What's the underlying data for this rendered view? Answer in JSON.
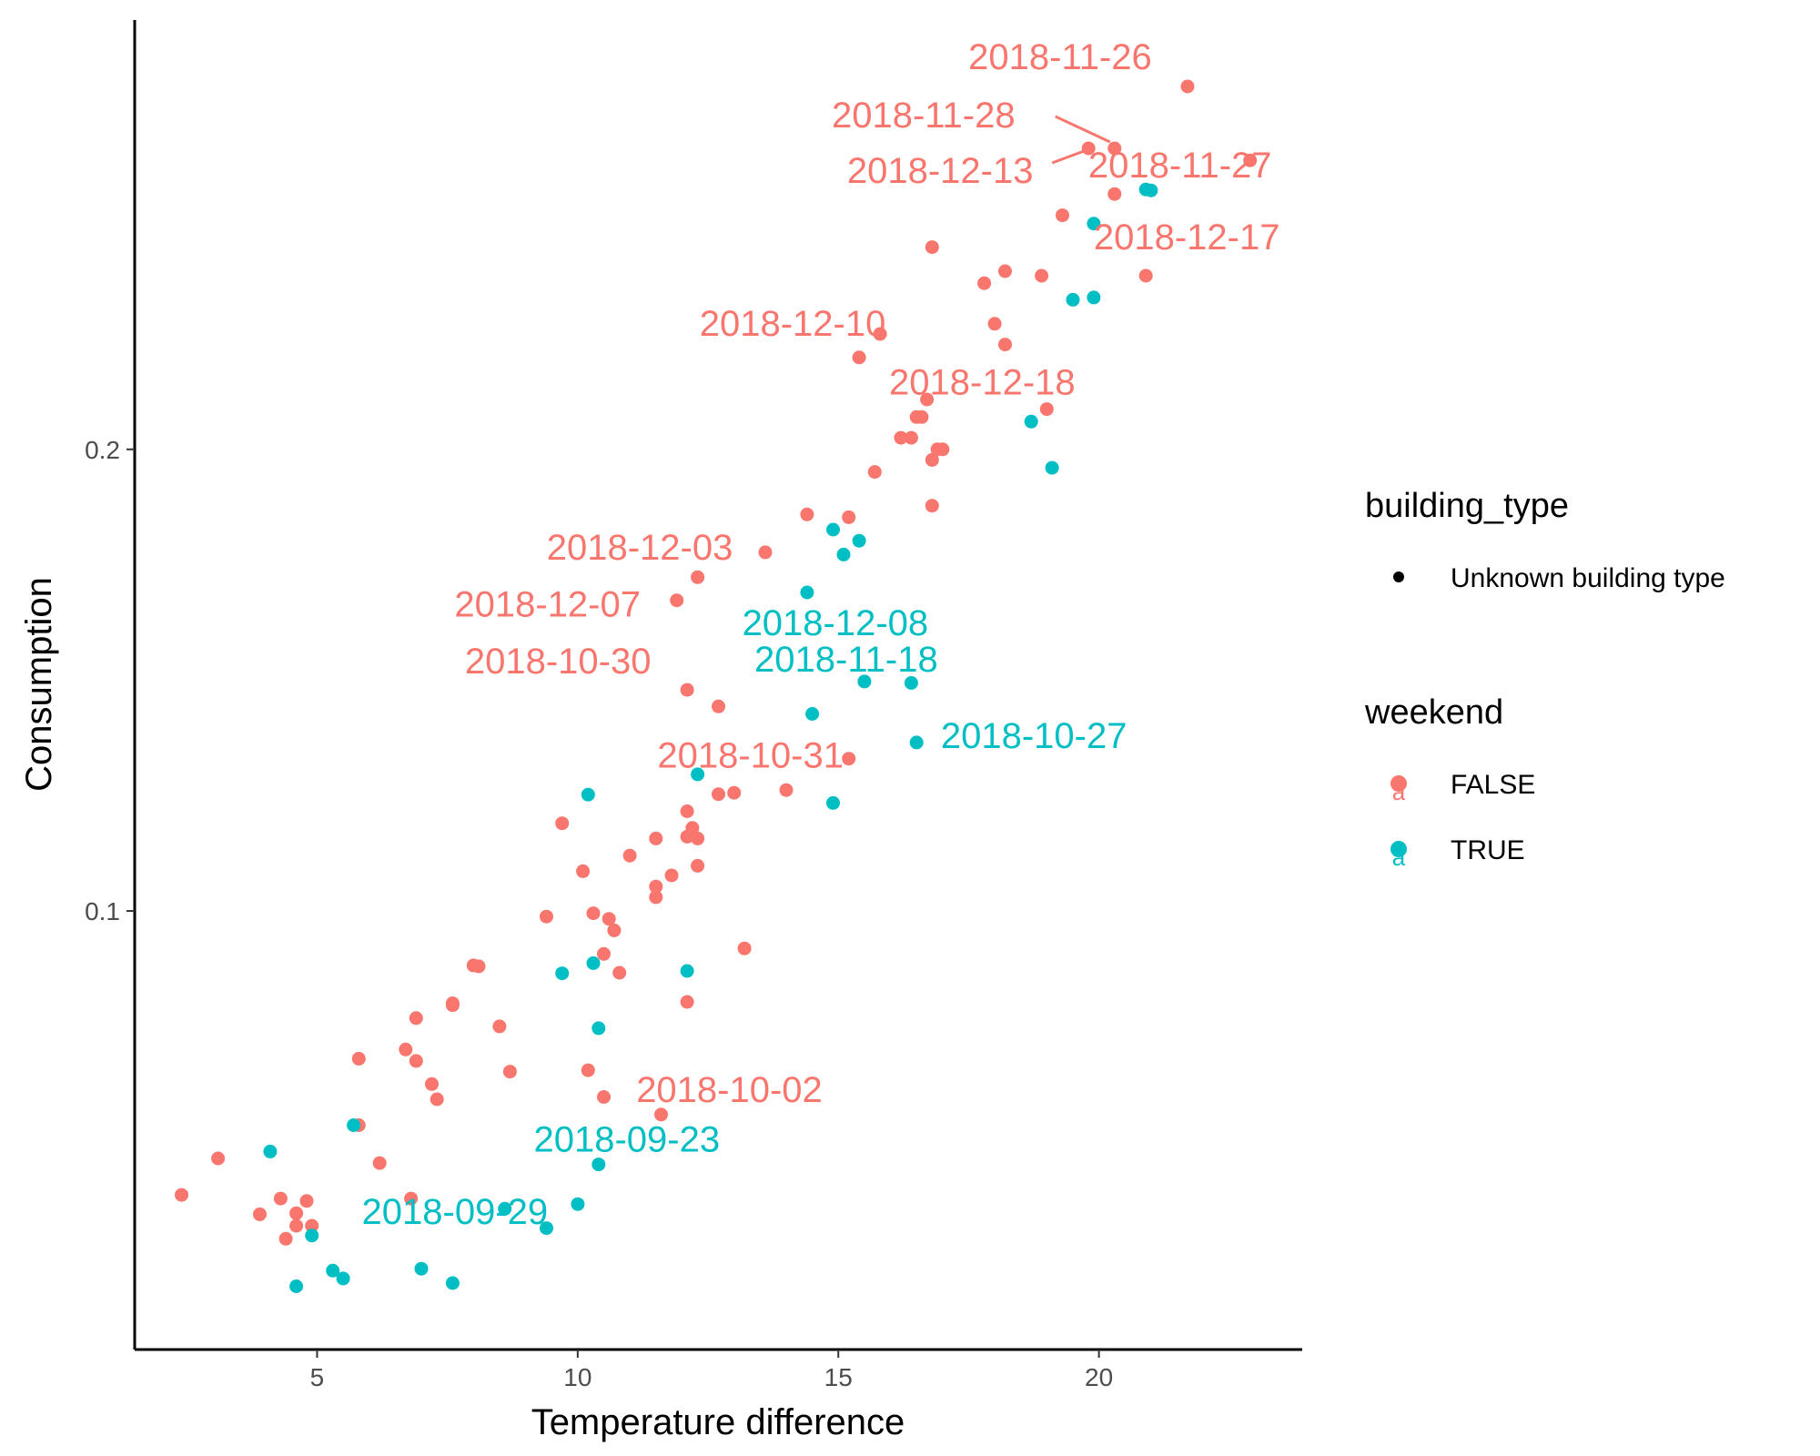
{
  "chart_data": {
    "type": "scatter",
    "title": "",
    "xlabel": "Temperature difference",
    "ylabel": "Consumption",
    "xlim": [
      1.5,
      23.9
    ],
    "ylim": [
      0.005,
      0.293
    ],
    "xticks": [
      5,
      10,
      15,
      20
    ],
    "yticks": [
      0.1,
      0.2
    ],
    "x_tick_labels": [
      "5",
      "10",
      "15",
      "20"
    ],
    "y_tick_labels": [
      "0.1",
      "0.2"
    ],
    "grid": false,
    "legend_position": "right",
    "legend": {
      "building_type": {
        "title": "building_type",
        "entries": [
          "Unknown building type"
        ]
      },
      "weekend": {
        "title": "weekend",
        "entries": [
          {
            "label": "FALSE",
            "color": "#F8766D",
            "glyph": "a"
          },
          {
            "label": "TRUE",
            "color": "#00BFC4",
            "glyph": "a"
          }
        ]
      }
    },
    "colors": {
      "FALSE": "#F8766D",
      "TRUE": "#00BFC4"
    },
    "series": [
      {
        "name": "FALSE",
        "color": "#F8766D",
        "points": [
          [
            21.7,
            0.2786
          ],
          [
            20.3,
            0.2652
          ],
          [
            19.8,
            0.2652
          ],
          [
            22.9,
            0.2626
          ],
          [
            20.3,
            0.2553
          ],
          [
            19.3,
            0.2507
          ],
          [
            16.8,
            0.2438
          ],
          [
            20.9,
            0.2376
          ],
          [
            18.9,
            0.2376
          ],
          [
            18.2,
            0.2386
          ],
          [
            17.8,
            0.236
          ],
          [
            18.0,
            0.2272
          ],
          [
            18.2,
            0.2227
          ],
          [
            15.8,
            0.225
          ],
          [
            15.4,
            0.2199
          ],
          [
            19.0,
            0.2087
          ],
          [
            16.7,
            0.2108
          ],
          [
            16.5,
            0.207
          ],
          [
            16.6,
            0.207
          ],
          [
            16.4,
            0.2025
          ],
          [
            16.2,
            0.2025
          ],
          [
            17.0,
            0.2
          ],
          [
            16.9,
            0.2
          ],
          [
            16.8,
            0.1977
          ],
          [
            15.7,
            0.1951
          ],
          [
            16.8,
            0.1878
          ],
          [
            14.4,
            0.1859
          ],
          [
            15.2,
            0.1853
          ],
          [
            13.6,
            0.1777
          ],
          [
            12.3,
            0.1723
          ],
          [
            11.9,
            0.1673
          ],
          [
            12.1,
            0.1479
          ],
          [
            12.7,
            0.1443
          ],
          [
            15.2,
            0.133
          ],
          [
            14.0,
            0.1262
          ],
          [
            13.0,
            0.1256
          ],
          [
            12.7,
            0.1253
          ],
          [
            12.1,
            0.1216
          ],
          [
            9.7,
            0.119
          ],
          [
            12.2,
            0.118
          ],
          [
            12.1,
            0.1161
          ],
          [
            12.3,
            0.1157
          ],
          [
            11.5,
            0.1157
          ],
          [
            11.0,
            0.112
          ],
          [
            12.3,
            0.1098
          ],
          [
            10.1,
            0.1086
          ],
          [
            11.8,
            0.1077
          ],
          [
            11.5,
            0.1053
          ],
          [
            11.5,
            0.103
          ],
          [
            10.3,
            0.0995
          ],
          [
            9.4,
            0.0988
          ],
          [
            10.6,
            0.0983
          ],
          [
            10.7,
            0.0958
          ],
          [
            13.2,
            0.0919
          ],
          [
            10.5,
            0.0907
          ],
          [
            8.0,
            0.0882
          ],
          [
            8.1,
            0.088
          ],
          [
            10.8,
            0.0866
          ],
          [
            12.1,
            0.0803
          ],
          [
            7.6,
            0.08
          ],
          [
            7.6,
            0.0796
          ],
          [
            6.9,
            0.0768
          ],
          [
            8.5,
            0.075
          ],
          [
            5.8,
            0.068
          ],
          [
            6.7,
            0.07
          ],
          [
            6.9,
            0.0675
          ],
          [
            10.2,
            0.0655
          ],
          [
            8.7,
            0.0652
          ],
          [
            7.2,
            0.0625
          ],
          [
            7.3,
            0.0592
          ],
          [
            10.5,
            0.0597
          ],
          [
            11.6,
            0.0559
          ],
          [
            5.8,
            0.0536
          ],
          [
            6.2,
            0.0454
          ],
          [
            3.1,
            0.0464
          ],
          [
            2.4,
            0.0385
          ],
          [
            4.3,
            0.0377
          ],
          [
            4.8,
            0.0372
          ],
          [
            6.8,
            0.0377
          ],
          [
            4.6,
            0.0345
          ],
          [
            3.9,
            0.0343
          ],
          [
            4.6,
            0.0318
          ],
          [
            4.9,
            0.0318
          ],
          [
            4.4,
            0.029
          ]
        ]
      },
      {
        "name": "TRUE",
        "color": "#00BFC4",
        "points": [
          [
            20.9,
            0.2563
          ],
          [
            21.0,
            0.2561
          ],
          [
            19.9,
            0.2489
          ],
          [
            19.9,
            0.2329
          ],
          [
            19.5,
            0.2324
          ],
          [
            18.7,
            0.206
          ],
          [
            19.1,
            0.196
          ],
          [
            14.9,
            0.1826
          ],
          [
            15.4,
            0.1802
          ],
          [
            15.1,
            0.1772
          ],
          [
            14.4,
            0.169
          ],
          [
            15.5,
            0.1497
          ],
          [
            16.4,
            0.1494
          ],
          [
            14.5,
            0.1427
          ],
          [
            16.5,
            0.1365
          ],
          [
            12.3,
            0.1296
          ],
          [
            10.2,
            0.1252
          ],
          [
            14.9,
            0.1234
          ],
          [
            9.7,
            0.0865
          ],
          [
            10.3,
            0.0887
          ],
          [
            12.1,
            0.087
          ],
          [
            10.4,
            0.0746
          ],
          [
            5.7,
            0.0536
          ],
          [
            4.1,
            0.0479
          ],
          [
            10.4,
            0.0451
          ],
          [
            10.0,
            0.0365
          ],
          [
            8.6,
            0.0355
          ],
          [
            9.4,
            0.0313
          ],
          [
            4.9,
            0.0297
          ],
          [
            7.0,
            0.0225
          ],
          [
            5.3,
            0.0221
          ],
          [
            5.5,
            0.0204
          ],
          [
            7.6,
            0.0194
          ],
          [
            4.6,
            0.0187
          ]
        ]
      }
    ],
    "point_labels": [
      {
        "text": "2018-11-26",
        "x": 21.7,
        "y": 0.2786,
        "series": "FALSE"
      },
      {
        "text": "2018-11-28",
        "x": 20.3,
        "y": 0.2652,
        "series": "FALSE"
      },
      {
        "text": "2018-12-13",
        "x": 19.8,
        "y": 0.2652,
        "series": "FALSE"
      },
      {
        "text": "2018-11-27",
        "x": 22.9,
        "y": 0.2626,
        "series": "FALSE"
      },
      {
        "text": "2018-12-17",
        "x": 20.9,
        "y": 0.2376,
        "series": "FALSE"
      },
      {
        "text": "2018-12-10",
        "x": 15.8,
        "y": 0.225,
        "series": "FALSE"
      },
      {
        "text": "2018-12-18",
        "x": 19.0,
        "y": 0.2087,
        "series": "FALSE"
      },
      {
        "text": "2018-12-03",
        "x": 13.6,
        "y": 0.1777,
        "series": "FALSE"
      },
      {
        "text": "2018-12-07",
        "x": 11.9,
        "y": 0.1673,
        "series": "FALSE"
      },
      {
        "text": "2018-12-08",
        "x": 14.4,
        "y": 0.169,
        "series": "TRUE"
      },
      {
        "text": "2018-10-30",
        "x": 12.1,
        "y": 0.1479,
        "series": "FALSE"
      },
      {
        "text": "2018-11-18",
        "x": 15.5,
        "y": 0.1497,
        "series": "TRUE"
      },
      {
        "text": "2018-10-27",
        "x": 16.5,
        "y": 0.1365,
        "series": "TRUE"
      },
      {
        "text": "2018-10-31",
        "x": 15.2,
        "y": 0.133,
        "series": "FALSE"
      },
      {
        "text": "2018-10-02",
        "x": 11.6,
        "y": 0.0559,
        "series": "FALSE"
      },
      {
        "text": "2018-09-23",
        "x": 10.4,
        "y": 0.0451,
        "series": "TRUE"
      },
      {
        "text": "2018-09-29",
        "x": 10.0,
        "y": 0.0365,
        "series": "TRUE"
      }
    ]
  }
}
